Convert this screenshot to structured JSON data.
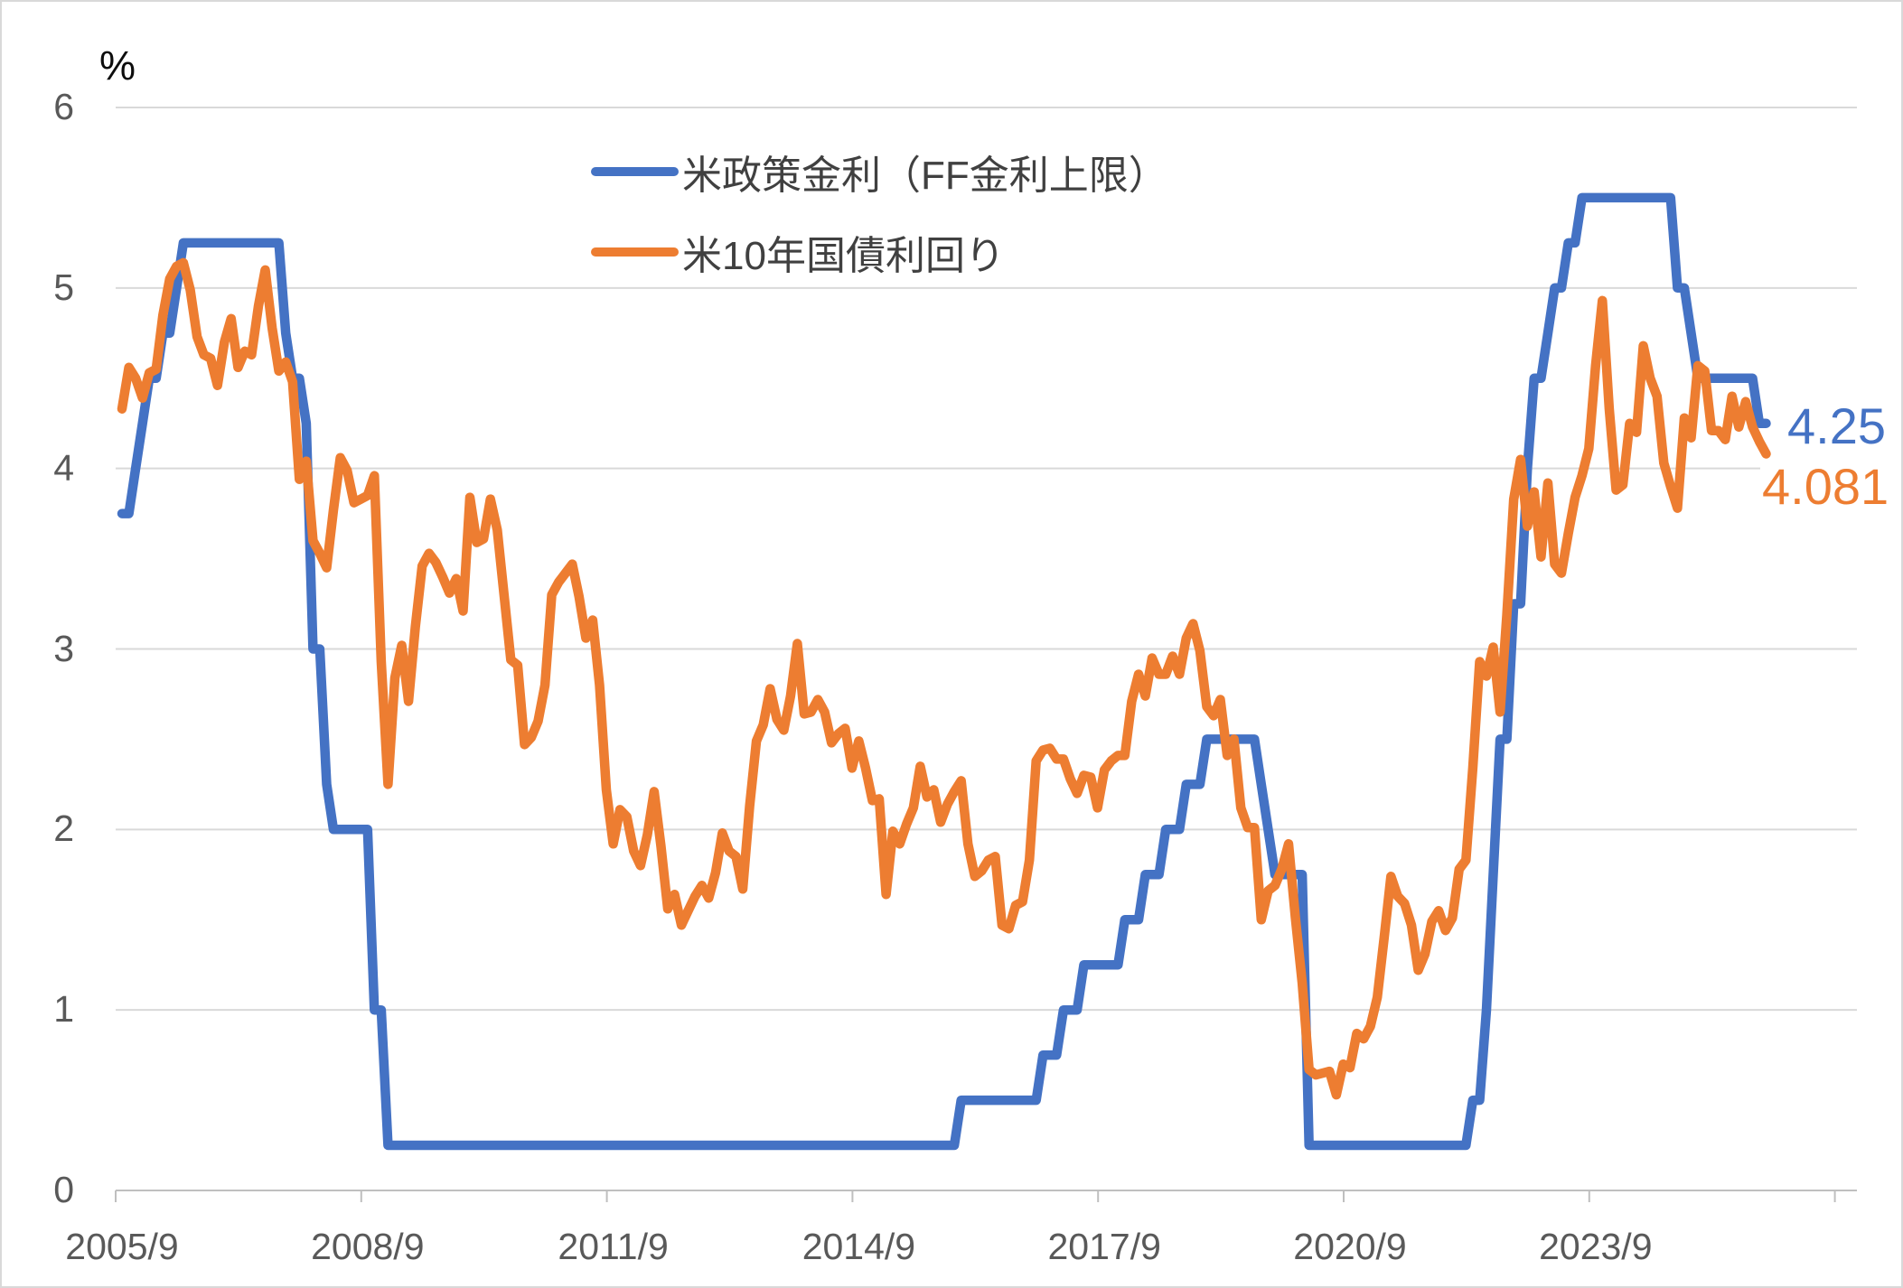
{
  "chart": {
    "unit_label": "%",
    "y_ticks": [
      0,
      1,
      2,
      3,
      4,
      5,
      6
    ],
    "x_tick_labels": [
      "2005/9",
      "2008/9",
      "2011/9",
      "2014/9",
      "2017/9",
      "2020/9",
      "2023/9"
    ],
    "value_labels": {
      "ff": "4.25",
      "ust10": "4.081"
    },
    "colors": {
      "ff": "#4472C4",
      "ust10": "#ED7D31",
      "grid": "#D9D9D9",
      "axis": "#BFBFBF",
      "axis_text": "#595959",
      "legend_text": "#404040"
    }
  },
  "legend": [
    {
      "label": "米政策金利（FF金利上限）",
      "color": "#4472C4"
    },
    {
      "label": "米10年国債利回り",
      "color": "#ED7D31"
    }
  ],
  "chart_data": {
    "type": "line",
    "title": "",
    "xlabel": "",
    "ylabel": "%",
    "ylim": [
      0,
      6
    ],
    "grid": "horizontal-only",
    "legend_position": "top-center-inside",
    "x_start": "2005/9",
    "x_end": "2025/10",
    "x_interval": "monthly",
    "x_tick_labels": [
      "2005/9",
      "2008/9",
      "2011/9",
      "2014/9",
      "2017/9",
      "2020/9",
      "2023/9"
    ],
    "x_tick_every_months": 36,
    "end_value_annotations": [
      {
        "series": "米政策金利（FF金利上限）",
        "text": "4.25",
        "color": "#4472C4"
      },
      {
        "series": "米10年国債利回り",
        "text": "4.081",
        "color": "#ED7D31"
      }
    ],
    "series": [
      {
        "name": "米政策金利（FF金利上限）",
        "color": "#4472C4",
        "values": [
          3.75,
          3.75,
          4.0,
          4.25,
          4.5,
          4.5,
          4.75,
          4.75,
          5.0,
          5.25,
          5.25,
          5.25,
          5.25,
          5.25,
          5.25,
          5.25,
          5.25,
          5.25,
          5.25,
          5.25,
          5.25,
          5.25,
          5.25,
          5.25,
          4.75,
          4.5,
          4.5,
          4.25,
          3.0,
          3.0,
          2.25,
          2.0,
          2.0,
          2.0,
          2.0,
          2.0,
          2.0,
          1.0,
          1.0,
          0.25,
          0.25,
          0.25,
          0.25,
          0.25,
          0.25,
          0.25,
          0.25,
          0.25,
          0.25,
          0.25,
          0.25,
          0.25,
          0.25,
          0.25,
          0.25,
          0.25,
          0.25,
          0.25,
          0.25,
          0.25,
          0.25,
          0.25,
          0.25,
          0.25,
          0.25,
          0.25,
          0.25,
          0.25,
          0.25,
          0.25,
          0.25,
          0.25,
          0.25,
          0.25,
          0.25,
          0.25,
          0.25,
          0.25,
          0.25,
          0.25,
          0.25,
          0.25,
          0.25,
          0.25,
          0.25,
          0.25,
          0.25,
          0.25,
          0.25,
          0.25,
          0.25,
          0.25,
          0.25,
          0.25,
          0.25,
          0.25,
          0.25,
          0.25,
          0.25,
          0.25,
          0.25,
          0.25,
          0.25,
          0.25,
          0.25,
          0.25,
          0.25,
          0.25,
          0.25,
          0.25,
          0.25,
          0.25,
          0.25,
          0.25,
          0.25,
          0.25,
          0.25,
          0.25,
          0.25,
          0.25,
          0.25,
          0.25,
          0.25,
          0.5,
          0.5,
          0.5,
          0.5,
          0.5,
          0.5,
          0.5,
          0.5,
          0.5,
          0.5,
          0.5,
          0.5,
          0.75,
          0.75,
          0.75,
          1.0,
          1.0,
          1.0,
          1.25,
          1.25,
          1.25,
          1.25,
          1.25,
          1.25,
          1.5,
          1.5,
          1.5,
          1.75,
          1.75,
          1.75,
          2.0,
          2.0,
          2.0,
          2.25,
          2.25,
          2.25,
          2.5,
          2.5,
          2.5,
          2.5,
          2.5,
          2.5,
          2.5,
          2.5,
          2.25,
          2.0,
          1.75,
          1.75,
          1.75,
          1.75,
          1.75,
          0.25,
          0.25,
          0.25,
          0.25,
          0.25,
          0.25,
          0.25,
          0.25,
          0.25,
          0.25,
          0.25,
          0.25,
          0.25,
          0.25,
          0.25,
          0.25,
          0.25,
          0.25,
          0.25,
          0.25,
          0.25,
          0.25,
          0.25,
          0.25,
          0.5,
          0.5,
          1.0,
          1.75,
          2.5,
          2.5,
          3.25,
          3.25,
          4.0,
          4.5,
          4.5,
          4.75,
          5.0,
          5.0,
          5.25,
          5.25,
          5.5,
          5.5,
          5.5,
          5.5,
          5.5,
          5.5,
          5.5,
          5.5,
          5.5,
          5.5,
          5.5,
          5.5,
          5.5,
          5.5,
          5.0,
          5.0,
          4.75,
          4.5,
          4.5,
          4.5,
          4.5,
          4.5,
          4.5,
          4.5,
          4.5,
          4.5,
          4.25,
          4.25
        ]
      },
      {
        "name": "米10年国債利回り",
        "color": "#ED7D31",
        "values": [
          4.33,
          4.56,
          4.5,
          4.39,
          4.53,
          4.55,
          4.85,
          5.05,
          5.12,
          5.14,
          4.99,
          4.73,
          4.63,
          4.61,
          4.46,
          4.7,
          4.83,
          4.56,
          4.65,
          4.63,
          4.9,
          5.1,
          4.78,
          4.54,
          4.59,
          4.48,
          3.94,
          4.04,
          3.6,
          3.53,
          3.45,
          3.77,
          4.06,
          3.99,
          3.81,
          3.83,
          3.85,
          3.96,
          2.93,
          2.25,
          2.84,
          3.02,
          2.71,
          3.12,
          3.46,
          3.53,
          3.48,
          3.4,
          3.31,
          3.39,
          3.21,
          3.84,
          3.59,
          3.61,
          3.83,
          3.66,
          3.3,
          2.94,
          2.91,
          2.47,
          2.51,
          2.6,
          2.8,
          3.3,
          3.37,
          3.42,
          3.47,
          3.29,
          3.06,
          3.16,
          2.8,
          2.22,
          1.92,
          2.11,
          2.07,
          1.88,
          1.8,
          1.97,
          2.21,
          1.91,
          1.56,
          1.64,
          1.47,
          1.55,
          1.63,
          1.69,
          1.62,
          1.76,
          1.98,
          1.88,
          1.85,
          1.67,
          2.13,
          2.49,
          2.58,
          2.78,
          2.61,
          2.55,
          2.74,
          3.03,
          2.64,
          2.65,
          2.72,
          2.65,
          2.48,
          2.53,
          2.56,
          2.34,
          2.49,
          2.34,
          2.16,
          2.17,
          1.64,
          1.99,
          1.92,
          2.03,
          2.12,
          2.35,
          2.18,
          2.22,
          2.04,
          2.14,
          2.21,
          2.27,
          1.92,
          1.74,
          1.77,
          1.83,
          1.85,
          1.47,
          1.45,
          1.58,
          1.6,
          1.83,
          2.38,
          2.44,
          2.45,
          2.39,
          2.39,
          2.28,
          2.2,
          2.3,
          2.29,
          2.12,
          2.33,
          2.38,
          2.41,
          2.41,
          2.71,
          2.86,
          2.74,
          2.95,
          2.86,
          2.86,
          2.96,
          2.86,
          3.06,
          3.14,
          2.99,
          2.68,
          2.63,
          2.72,
          2.41,
          2.5,
          2.12,
          2.01,
          2.01,
          1.5,
          1.66,
          1.69,
          1.78,
          1.92,
          1.51,
          1.15,
          0.67,
          0.64,
          0.65,
          0.66,
          0.53,
          0.7,
          0.68,
          0.87,
          0.84,
          0.91,
          1.07,
          1.4,
          1.74,
          1.63,
          1.59,
          1.47,
          1.22,
          1.31,
          1.49,
          1.55,
          1.44,
          1.51,
          1.78,
          1.83,
          2.34,
          2.93,
          2.85,
          3.01,
          2.65,
          3.19,
          3.83,
          4.05,
          3.68,
          3.87,
          3.51,
          3.92,
          3.47,
          3.42,
          3.64,
          3.84,
          3.96,
          4.11,
          4.57,
          4.93,
          4.33,
          3.88,
          3.91,
          4.25,
          4.2,
          4.68,
          4.5,
          4.4,
          4.03,
          3.9,
          3.78,
          4.28,
          4.17,
          4.57,
          4.54,
          4.21,
          4.21,
          4.16,
          4.4,
          4.23,
          4.37,
          4.23,
          4.15,
          4.081
        ]
      }
    ]
  }
}
